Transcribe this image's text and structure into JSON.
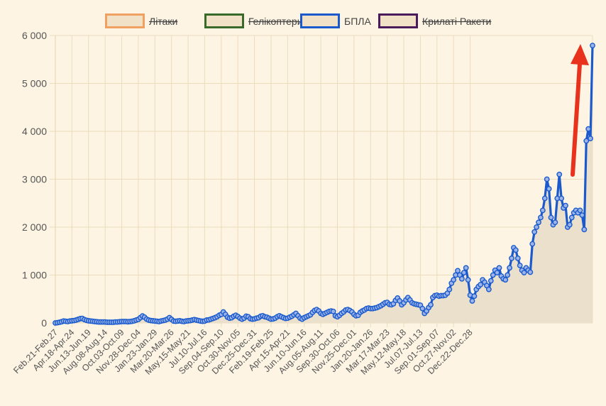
{
  "chart_data": {
    "type": "area",
    "title": "",
    "xlabel": "",
    "ylabel": "",
    "ylim": [
      0,
      6000
    ],
    "yticks": [
      {
        "value": 0,
        "label": "0"
      },
      {
        "value": 1000,
        "label": "1 000"
      },
      {
        "value": 2000,
        "label": "2 000"
      },
      {
        "value": 3000,
        "label": "3 000"
      },
      {
        "value": 4000,
        "label": "4 000"
      },
      {
        "value": 5000,
        "label": "5 000"
      },
      {
        "value": 6000,
        "label": "6 000"
      }
    ],
    "xtick_labels": [
      "Feb.21-Feb.27",
      "Apr.18-Apr.24",
      "Jun.13-Jun.19",
      "Aug.08-Aug.14",
      "Oct.03-Oct.09",
      "Nov.28-Dec.04",
      "Jan.23-Jan.29",
      "Mar.20-Mar.26",
      "May.15-May.21",
      "Jul.10-Jul.16",
      "Sep.04-Sep.10",
      "Oct.30-Nov.05",
      "Dec.25-Dec.31",
      "Feb.19-Feb.25",
      "Apr.15-Apr.21",
      "Jun.10-Jun.16",
      "Aug.05-Aug.11",
      "Sep.30-Oct.06",
      "Nov.25-Dec.01",
      "Jan.20-Jan.26",
      "Mar.17-Mar.23",
      "May.12-May.18",
      "Jul.07-Jul.13",
      "Sep.01-Sep.07",
      "Oct.27-Nov.02",
      "Dec.22-Dec.28"
    ],
    "weeks_per_tick": 8,
    "legend_position": "top",
    "grid": true,
    "legend": [
      {
        "label": "Літаки",
        "color": "#f0a060",
        "hidden": true
      },
      {
        "label": "Гелікоптери",
        "color": "#3a6a2a",
        "hidden": true
      },
      {
        "label": "БПЛА",
        "color": "#1a5acc",
        "hidden": false
      },
      {
        "label": "Крилаті Ракети",
        "color": "#4a1a5a",
        "hidden": true
      }
    ],
    "series": [
      {
        "name": "БПЛА",
        "color": "#1a5acc",
        "fill": "#ebe0cc",
        "values": [
          0,
          5,
          15,
          25,
          40,
          35,
          30,
          40,
          45,
          50,
          60,
          75,
          90,
          95,
          70,
          55,
          45,
          40,
          35,
          30,
          25,
          20,
          20,
          20,
          20,
          15,
          15,
          15,
          15,
          20,
          20,
          25,
          30,
          30,
          30,
          25,
          30,
          35,
          45,
          60,
          75,
          110,
          145,
          120,
          80,
          60,
          50,
          45,
          40,
          35,
          30,
          40,
          50,
          60,
          80,
          110,
          75,
          40,
          35,
          40,
          45,
          35,
          30,
          40,
          45,
          50,
          60,
          70,
          60,
          50,
          40,
          35,
          40,
          60,
          65,
          80,
          95,
          110,
          130,
          160,
          180,
          230,
          180,
          120,
          100,
          110,
          140,
          160,
          135,
          100,
          80,
          100,
          140,
          130,
          90,
          80,
          85,
          100,
          110,
          140,
          150,
          130,
          120,
          100,
          80,
          85,
          100,
          130,
          150,
          130,
          110,
          95,
          100,
          120,
          140,
          170,
          200,
          150,
          100,
          80,
          110,
          130,
          150,
          170,
          220,
          260,
          280,
          250,
          200,
          180,
          200,
          220,
          240,
          250,
          240,
          150,
          130,
          160,
          200,
          230,
          270,
          280,
          260,
          230,
          180,
          150,
          160,
          220,
          250,
          270,
          300,
          310,
          300,
          300,
          310,
          320,
          340,
          360,
          390,
          420,
          430,
          390,
          380,
          400,
          470,
          520,
          460,
          380,
          420,
          480,
          530,
          480,
          420,
          400,
          390,
          380,
          370,
          300,
          200,
          250,
          320,
          380,
          530,
          570,
          580,
          560,
          570,
          570,
          580,
          620,
          700,
          830,
          900,
          1000,
          1090,
          1000,
          920,
          1050,
          1150,
          900,
          580,
          460,
          560,
          700,
          760,
          800,
          900,
          850,
          780,
          700,
          880,
          1000,
          1100,
          1050,
          1150,
          980,
          920,
          900,
          1000,
          1150,
          1350,
          1570,
          1520,
          1350,
          1200,
          1100,
          1050,
          1150,
          1100,
          1060,
          1650,
          1900,
          2000,
          2100,
          2200,
          2350,
          2600,
          3000,
          2800,
          2200,
          2050,
          2100,
          2600,
          3100,
          2600,
          2400,
          2450,
          2000,
          2050,
          2200,
          2300,
          2350,
          2300,
          2350,
          2250,
          1950,
          3800,
          4050,
          3850,
          5790
        ]
      }
    ]
  }
}
